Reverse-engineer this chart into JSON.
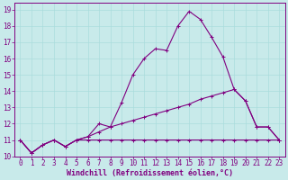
{
  "xlabel": "Windchill (Refroidissement éolien,°C)",
  "bg_color": "#c8eaea",
  "line_color": "#800080",
  "grid_color": "#aadddd",
  "xlim": [
    -0.5,
    23.5
  ],
  "ylim": [
    10,
    19.4
  ],
  "xticks": [
    0,
    1,
    2,
    3,
    4,
    5,
    6,
    7,
    8,
    9,
    10,
    11,
    12,
    13,
    14,
    15,
    16,
    17,
    18,
    19,
    20,
    21,
    22,
    23
  ],
  "yticks": [
    10,
    11,
    12,
    13,
    14,
    15,
    16,
    17,
    18,
    19
  ],
  "series1_x": [
    0,
    1,
    2,
    3,
    4,
    5,
    6,
    7,
    8,
    9,
    10,
    11,
    12,
    13,
    14,
    15,
    16,
    17,
    18,
    19,
    20,
    21,
    22,
    23
  ],
  "series1_y": [
    11.0,
    10.2,
    10.7,
    11.0,
    10.6,
    11.0,
    11.0,
    11.0,
    11.0,
    11.0,
    11.0,
    11.0,
    11.0,
    11.0,
    11.0,
    11.0,
    11.0,
    11.0,
    11.0,
    11.0,
    11.0,
    11.0,
    11.0,
    11.0
  ],
  "series2_x": [
    0,
    1,
    2,
    3,
    4,
    5,
    6,
    7,
    8,
    9,
    10,
    11,
    12,
    13,
    14,
    15,
    16,
    17,
    18,
    19,
    20,
    21,
    22,
    23
  ],
  "series2_y": [
    11.0,
    10.2,
    10.7,
    11.0,
    10.6,
    11.0,
    11.2,
    11.5,
    11.8,
    12.0,
    12.2,
    12.4,
    12.6,
    12.8,
    13.0,
    13.2,
    13.5,
    13.7,
    13.9,
    14.1,
    13.4,
    11.8,
    11.8,
    11.0
  ],
  "series3_x": [
    0,
    1,
    2,
    3,
    4,
    5,
    6,
    7,
    8,
    9,
    10,
    11,
    12,
    13,
    14,
    15,
    16,
    17,
    18,
    19,
    20,
    21,
    22,
    23
  ],
  "series3_y": [
    11.0,
    10.2,
    10.7,
    11.0,
    10.6,
    11.0,
    11.2,
    12.0,
    11.8,
    13.3,
    15.0,
    16.0,
    16.6,
    16.5,
    18.0,
    18.9,
    18.4,
    17.3,
    16.1,
    14.1,
    13.4,
    11.8,
    11.8,
    11.0
  ],
  "tick_fontsize": 5.5,
  "xlabel_fontsize": 6.0,
  "marker": "+",
  "markersize": 2.5,
  "linewidth": 0.8,
  "spine_linewidth": 0.7
}
